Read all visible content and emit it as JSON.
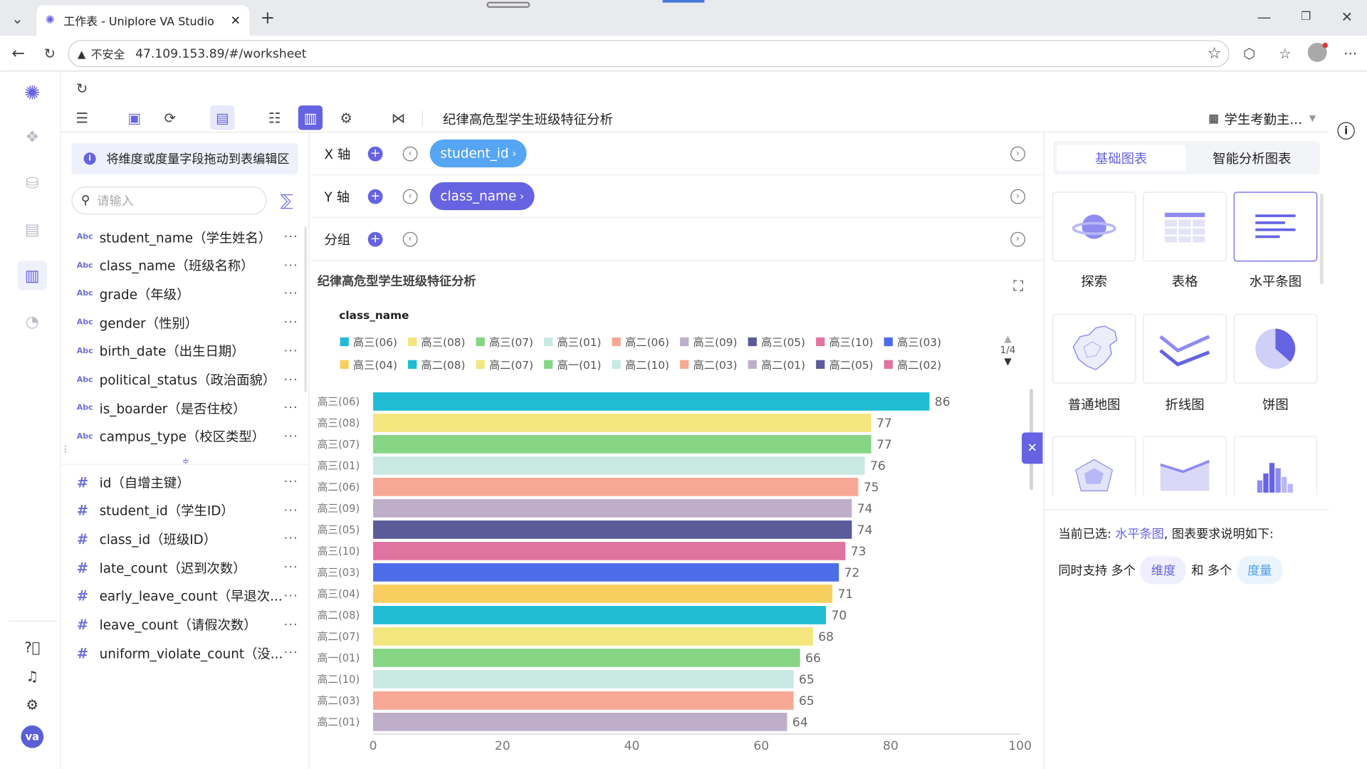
{
  "browser": {
    "tab_title": "工作表 - Uniplore VA Studio",
    "security_label": "不安全",
    "url": "47.109.153.89/#/worksheet"
  },
  "toolbar": {
    "worksheet_title": "纪律高危型学生班级特征分析",
    "datasource": "学生考勤主..."
  },
  "fields_panel": {
    "hint": "将维度或度量字段拖动到表编辑区",
    "search_placeholder": "请输入",
    "dimension_type_badge": "Abc",
    "measure_type_badge": "#",
    "more_label": "···",
    "dimensions": [
      "student_name（学生姓名）",
      "class_name（班级名称）",
      "grade（年级）",
      "gender（性别）",
      "birth_date（出生日期）",
      "political_status（政治面貌）",
      "is_boarder（是否住校）",
      "campus_type（校区类型）"
    ],
    "measures": [
      "id（自增主键）",
      "student_id（学生ID）",
      "class_id（班级ID）",
      "late_count（迟到次数）",
      "early_leave_count（早退次...",
      "leave_count（请假次数）",
      "uniform_violate_count（没..."
    ]
  },
  "config": {
    "x_label": "X 轴",
    "y_label": "Y 轴",
    "group_label": "分组",
    "x_field": "student_id",
    "y_field": "class_name"
  },
  "chart_panel": {
    "title": "纪律高危型学生班级特征分析",
    "legend_title": "class_name",
    "legend_page": "1/4"
  },
  "chart_data": {
    "type": "bar",
    "orientation": "horizontal",
    "categories": [
      "高三(06)",
      "高三(08)",
      "高三(07)",
      "高三(01)",
      "高二(06)",
      "高三(09)",
      "高三(05)",
      "高三(10)",
      "高三(03)",
      "高三(04)",
      "高二(08)",
      "高二(07)",
      "高一(01)",
      "高二(10)",
      "高二(03)",
      "高二(01)"
    ],
    "values": [
      86,
      77,
      77,
      76,
      75,
      74,
      74,
      73,
      72,
      71,
      70,
      68,
      66,
      65,
      65,
      64
    ],
    "colors": [
      "#1fbcd3",
      "#f2e67d",
      "#86d585",
      "#c7e9e1",
      "#f6a894",
      "#bfaec9",
      "#5b5b9a",
      "#e0739f",
      "#4d6cea",
      "#f8cf5e",
      "#1fbcd3",
      "#f2e67d",
      "#86d585",
      "#c7e9e1",
      "#f6a894",
      "#bfaec9"
    ],
    "xlim": [
      0,
      100
    ],
    "xticks": [
      "0",
      "20",
      "40",
      "60",
      "80",
      "100"
    ],
    "legend": [
      {
        "name": "高三(06)",
        "color": "#1fbcd3"
      },
      {
        "name": "高三(08)",
        "color": "#f2e67d"
      },
      {
        "name": "高三(07)",
        "color": "#86d585"
      },
      {
        "name": "高三(01)",
        "color": "#c7e9e1"
      },
      {
        "name": "高二(06)",
        "color": "#f6a894"
      },
      {
        "name": "高三(09)",
        "color": "#bfaec9"
      },
      {
        "name": "高三(05)",
        "color": "#5b5b9a"
      },
      {
        "name": "高三(10)",
        "color": "#e0739f"
      },
      {
        "name": "高三(03)",
        "color": "#4d6cea"
      },
      {
        "name": "高三(04)",
        "color": "#f8cf5e"
      },
      {
        "name": "高二(08)",
        "color": "#1fbcd3"
      },
      {
        "name": "高二(07)",
        "color": "#f2e67d"
      },
      {
        "name": "高一(01)",
        "color": "#86d585"
      },
      {
        "name": "高二(10)",
        "color": "#c7e9e1"
      },
      {
        "name": "高二(03)",
        "color": "#f6a894"
      },
      {
        "name": "高二(01)",
        "color": "#bfaec9"
      },
      {
        "name": "高二(05)",
        "color": "#5b5b9a"
      },
      {
        "name": "高二(02)",
        "color": "#e0739f"
      }
    ]
  },
  "chart_types": {
    "tab_basic": "基础图表",
    "tab_smart": "智能分析图表",
    "items": [
      "探索",
      "表格",
      "水平条图",
      "普通地图",
      "折线图",
      "饼图"
    ],
    "desc_prefix": "当前已选:",
    "desc_selected": "水平条图",
    "desc_suffix": ", 图表要求说明如下:",
    "req_text1": "同时支持 多个",
    "req_dim": "维度",
    "req_text2": "和 多个",
    "req_measure": "度量"
  },
  "app_sidebar": {
    "avatar": "va"
  }
}
